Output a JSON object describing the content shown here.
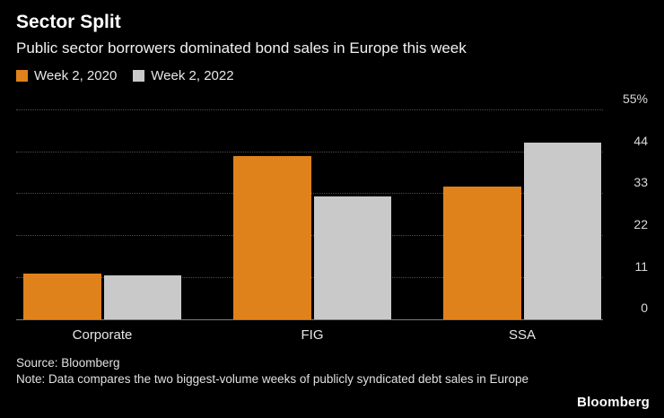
{
  "header": {
    "title": "Sector Split",
    "subtitle": "Public sector borrowers dominated bond sales in Europe this week"
  },
  "legend": [
    {
      "label": "Week 2, 2020",
      "color": "#e0821c"
    },
    {
      "label": "Week 2, 2022",
      "color": "#c9c9c9"
    }
  ],
  "chart_data": {
    "type": "bar",
    "title": "Sector Split",
    "subtitle": "Public sector borrowers dominated bond sales in Europe this week",
    "categories": [
      "Corporate",
      "FIG",
      "SSA"
    ],
    "series": [
      {
        "name": "Week 2, 2020",
        "color": "#e0821c",
        "values": [
          12,
          43,
          35
        ]
      },
      {
        "name": "Week 2, 2022",
        "color": "#c9c9c9",
        "values": [
          11.5,
          32.5,
          46.5
        ]
      }
    ],
    "ylabel": "%",
    "ylim": [
      0,
      55
    ],
    "yticks": [
      0,
      11,
      22,
      33,
      44,
      55
    ],
    "ytick_labels": [
      "0",
      "11",
      "22",
      "33",
      "44",
      "55%"
    ],
    "grid": "dotted-horizontal",
    "legend_position": "top-left",
    "colors": {
      "background": "#000000",
      "axis": "#7a7a7a",
      "gridline": "#4d4d4d"
    }
  },
  "footer": {
    "source": "Source: Bloomberg",
    "note": "Note: Data compares the two biggest-volume weeks of publicly syndicated debt sales in Europe",
    "logo": "Bloomberg"
  }
}
